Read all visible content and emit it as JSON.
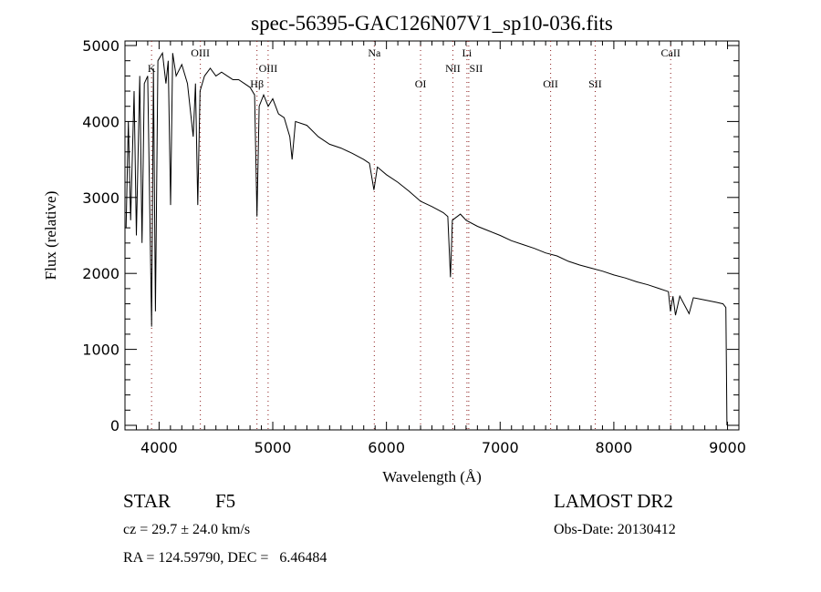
{
  "chart_data": {
    "type": "line",
    "title": "spec-56395-GAC126N07V1_sp10-036.fits",
    "xlabel": "Wavelength (Å)",
    "ylabel": "Flux (relative)",
    "xlim": [
      3700,
      9100
    ],
    "ylim": [
      -60,
      5060
    ],
    "xticks": [
      4000,
      5000,
      6000,
      7000,
      8000,
      9000
    ],
    "yticks": [
      0,
      1000,
      2000,
      3000,
      4000,
      5000
    ],
    "grid": false,
    "line_color": "#000000",
    "marker_color": "#8b1a1a",
    "lines": [
      {
        "label": "K",
        "wavelength": 3934,
        "row": 2
      },
      {
        "label": "OIII",
        "wavelength": 4363,
        "row": 1
      },
      {
        "label": "Hβ",
        "wavelength": 4861,
        "row": 3
      },
      {
        "label": "OIII",
        "wavelength": 4959,
        "row": 2
      },
      {
        "label": "Na",
        "wavelength": 5893,
        "row": 1
      },
      {
        "label": "OI",
        "wavelength": 6300,
        "row": 3
      },
      {
        "label": "NII",
        "wavelength": 6584,
        "row": 2
      },
      {
        "label": "Li",
        "wavelength": 6708,
        "row": 1
      },
      {
        "label": "SII",
        "wavelength": 6724,
        "row": 2
      },
      {
        "label": "OII",
        "wavelength": 7444,
        "row": 3
      },
      {
        "label": "SII",
        "wavelength": 7836,
        "row": 3
      },
      {
        "label": "CaII",
        "wavelength": 8500,
        "row": 1
      }
    ],
    "series": [
      {
        "name": "flux",
        "x": [
          3710,
          3730,
          3750,
          3780,
          3800,
          3830,
          3850,
          3870,
          3900,
          3934,
          3950,
          3968,
          3990,
          4030,
          4060,
          4080,
          4101,
          4120,
          4150,
          4200,
          4250,
          4300,
          4320,
          4340,
          4360,
          4400,
          4450,
          4500,
          4550,
          4600,
          4650,
          4700,
          4750,
          4800,
          4840,
          4861,
          4880,
          4920,
          4960,
          5000,
          5050,
          5100,
          5150,
          5170,
          5200,
          5300,
          5400,
          5500,
          5600,
          5700,
          5800,
          5850,
          5890,
          5920,
          6000,
          6100,
          6200,
          6300,
          6400,
          6500,
          6540,
          6563,
          6580,
          6650,
          6700,
          6800,
          6900,
          7000,
          7100,
          7200,
          7300,
          7400,
          7500,
          7600,
          7700,
          7800,
          7900,
          8000,
          8100,
          8200,
          8300,
          8400,
          8480,
          8498,
          8520,
          8542,
          8580,
          8662,
          8700,
          8800,
          8900,
          8960,
          8985,
          8990,
          8995
        ],
        "y": [
          2600,
          4000,
          2700,
          4400,
          2500,
          4600,
          2400,
          4500,
          4600,
          1300,
          4700,
          1500,
          4800,
          4900,
          4500,
          4800,
          2900,
          4900,
          4600,
          4750,
          4500,
          3800,
          4500,
          2900,
          4400,
          4600,
          4700,
          4600,
          4650,
          4600,
          4550,
          4550,
          4500,
          4450,
          4350,
          2750,
          4200,
          4350,
          4200,
          4300,
          4100,
          4050,
          3800,
          3500,
          4000,
          3950,
          3800,
          3700,
          3650,
          3580,
          3500,
          3450,
          3100,
          3400,
          3300,
          3200,
          3080,
          2950,
          2880,
          2800,
          2750,
          1950,
          2700,
          2780,
          2700,
          2620,
          2560,
          2500,
          2430,
          2380,
          2330,
          2270,
          2230,
          2160,
          2110,
          2070,
          2030,
          1980,
          1940,
          1890,
          1850,
          1800,
          1760,
          1500,
          1700,
          1450,
          1700,
          1470,
          1680,
          1650,
          1620,
          1600,
          1550,
          800,
          0
        ]
      }
    ]
  },
  "footer": {
    "object_class": "STAR",
    "subclass": "F5",
    "redshift": "cz = 29.7 ± 24.0 km/s",
    "coords": "RA = 124.59790, DEC =   6.46484",
    "survey": "LAMOST DR2",
    "obs_date": "Obs-Date: 20130412"
  }
}
